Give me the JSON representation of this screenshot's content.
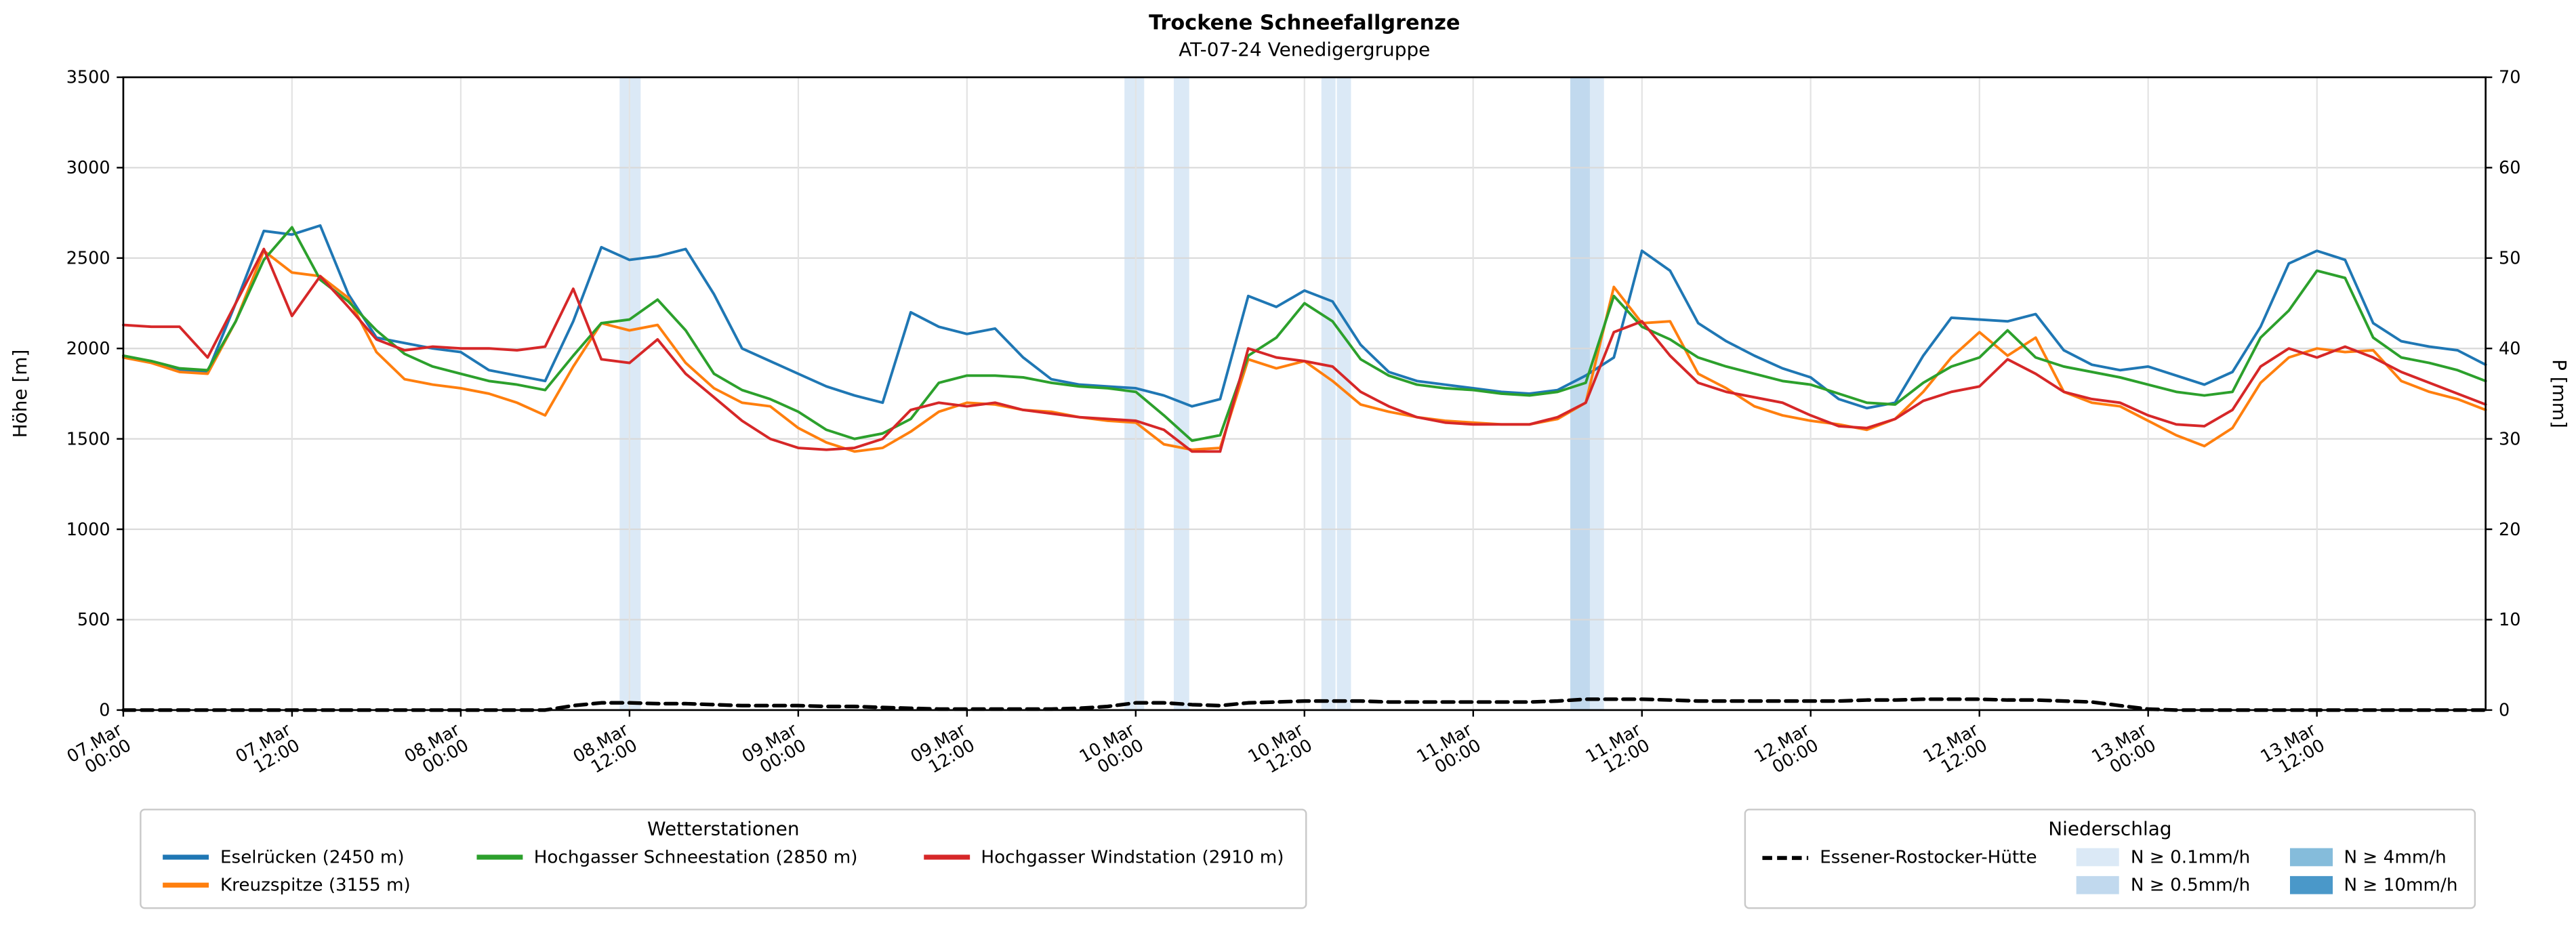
{
  "title": "Trockene Schneefallgrenze",
  "subtitle": "AT-07-24 Venedigergruppe",
  "legends": {
    "stations_title": "Wetterstationen",
    "precip_title": "Niederschlag"
  },
  "chart_data": {
    "type": "line",
    "title": "Trockene Schneefallgrenze",
    "subtitle": "AT-07-24 Venedigergruppe",
    "grid": true,
    "x_axis": {
      "start_hour": 0,
      "end_hour": 168,
      "tick_interval_hours": 12,
      "tick_labels": [
        [
          "07.Mar",
          "00:00"
        ],
        [
          "07.Mar",
          "12:00"
        ],
        [
          "08.Mar",
          "00:00"
        ],
        [
          "08.Mar",
          "12:00"
        ],
        [
          "09.Mar",
          "00:00"
        ],
        [
          "09.Mar",
          "12:00"
        ],
        [
          "10.Mar",
          "00:00"
        ],
        [
          "10.Mar",
          "12:00"
        ],
        [
          "11.Mar",
          "00:00"
        ],
        [
          "11.Mar",
          "12:00"
        ],
        [
          "12.Mar",
          "00:00"
        ],
        [
          "12.Mar",
          "12:00"
        ],
        [
          "13.Mar",
          "00:00"
        ],
        [
          "13.Mar",
          "12:00"
        ]
      ]
    },
    "y_left": {
      "label": "Höhe [m]",
      "min": 0,
      "max": 3500,
      "tick_step": 500
    },
    "y_right": {
      "label": "P [mm]",
      "min": 0,
      "max": 70,
      "tick_step": 10
    },
    "series": [
      {
        "name": "Eselrücken (2450 m)",
        "color": "#1f77b4",
        "axis": "left",
        "style": "solid",
        "start_hour": 0,
        "step_hours": 2,
        "values": [
          1950,
          1930,
          1880,
          1870,
          2250,
          2650,
          2630,
          2680,
          2300,
          2060,
          2030,
          2000,
          1980,
          1880,
          1850,
          1820,
          2150,
          2560,
          2490,
          2510,
          2550,
          2300,
          2000,
          1930,
          1860,
          1790,
          1740,
          1700,
          2200,
          2120,
          2080,
          2110,
          1950,
          1830,
          1800,
          1790,
          1780,
          1740,
          1680,
          1720,
          2290,
          2230,
          2320,
          2260,
          2020,
          1870,
          1820,
          1800,
          1780,
          1760,
          1750,
          1770,
          1850,
          1950,
          2540,
          2430,
          2140,
          2040,
          1960,
          1890,
          1840,
          1720,
          1670,
          1700,
          1960,
          2170,
          2160,
          2150,
          2190,
          1990,
          1910,
          1880,
          1900,
          1850,
          1800,
          1870,
          2120,
          2470,
          2540,
          2490,
          2140,
          2040,
          2010,
          1990,
          1910
        ]
      },
      {
        "name": "Kreuzspitze (3155 m)",
        "color": "#ff7f0e",
        "axis": "left",
        "style": "solid",
        "start_hour": 0,
        "step_hours": 2,
        "values": [
          1950,
          1920,
          1870,
          1860,
          2150,
          2540,
          2420,
          2400,
          2280,
          1980,
          1830,
          1800,
          1780,
          1750,
          1700,
          1630,
          1900,
          2140,
          2100,
          2130,
          1920,
          1780,
          1700,
          1680,
          1560,
          1480,
          1430,
          1450,
          1540,
          1650,
          1700,
          1690,
          1660,
          1650,
          1620,
          1600,
          1590,
          1470,
          1440,
          1450,
          1940,
          1890,
          1930,
          1820,
          1690,
          1650,
          1620,
          1600,
          1590,
          1580,
          1580,
          1610,
          1700,
          2340,
          2140,
          2150,
          1860,
          1780,
          1680,
          1630,
          1600,
          1580,
          1550,
          1610,
          1760,
          1950,
          2090,
          1960,
          2060,
          1760,
          1700,
          1680,
          1600,
          1520,
          1460,
          1560,
          1810,
          1950,
          2000,
          1980,
          1990,
          1820,
          1760,
          1720,
          1660
        ]
      },
      {
        "name": "Hochgasser Schneestation (2850 m)",
        "color": "#2ca02c",
        "axis": "left",
        "style": "solid",
        "start_hour": 0,
        "step_hours": 2,
        "values": [
          1960,
          1930,
          1890,
          1880,
          2150,
          2490,
          2670,
          2380,
          2260,
          2100,
          1970,
          1900,
          1860,
          1820,
          1800,
          1770,
          1960,
          2140,
          2160,
          2270,
          2100,
          1860,
          1770,
          1720,
          1650,
          1550,
          1500,
          1530,
          1610,
          1810,
          1850,
          1850,
          1840,
          1810,
          1790,
          1780,
          1760,
          1630,
          1490,
          1520,
          1960,
          2060,
          2250,
          2150,
          1940,
          1850,
          1800,
          1780,
          1770,
          1750,
          1740,
          1760,
          1810,
          2290,
          2120,
          2050,
          1950,
          1900,
          1860,
          1820,
          1800,
          1750,
          1700,
          1690,
          1810,
          1900,
          1950,
          2100,
          1950,
          1900,
          1870,
          1840,
          1800,
          1760,
          1740,
          1760,
          2060,
          2210,
          2430,
          2390,
          2060,
          1950,
          1920,
          1880,
          1820
        ]
      },
      {
        "name": "Hochgasser Windstation (2910 m)",
        "color": "#d62728",
        "axis": "left",
        "style": "solid",
        "start_hour": 0,
        "step_hours": 2,
        "values": [
          2130,
          2120,
          2120,
          1950,
          2250,
          2550,
          2180,
          2400,
          2230,
          2050,
          1990,
          2010,
          2000,
          2000,
          1990,
          2010,
          2330,
          1940,
          1920,
          2050,
          1860,
          1730,
          1600,
          1500,
          1450,
          1440,
          1450,
          1500,
          1660,
          1700,
          1680,
          1700,
          1660,
          1640,
          1620,
          1610,
          1600,
          1550,
          1430,
          1430,
          2000,
          1950,
          1930,
          1900,
          1760,
          1680,
          1620,
          1590,
          1580,
          1580,
          1580,
          1620,
          1700,
          2090,
          2150,
          1960,
          1810,
          1760,
          1730,
          1700,
          1630,
          1570,
          1560,
          1610,
          1710,
          1760,
          1790,
          1940,
          1860,
          1760,
          1720,
          1700,
          1630,
          1580,
          1570,
          1660,
          1900,
          2000,
          1950,
          2010,
          1950,
          1870,
          1810,
          1750,
          1690
        ]
      },
      {
        "name": "Essener-Rostocker-Hütte",
        "color": "#000000",
        "axis": "right",
        "style": "dashed",
        "start_hour": 0,
        "step_hours": 2,
        "values": [
          0,
          0,
          0,
          0,
          0,
          0,
          0,
          0,
          0,
          0,
          0,
          0,
          0,
          0,
          0,
          0,
          0.5,
          0.8,
          0.8,
          0.7,
          0.7,
          0.6,
          0.5,
          0.5,
          0.5,
          0.4,
          0.4,
          0.3,
          0.2,
          0.1,
          0.1,
          0.1,
          0.1,
          0.1,
          0.2,
          0.4,
          0.8,
          0.8,
          0.6,
          0.5,
          0.8,
          0.9,
          1.0,
          1.0,
          1.0,
          0.9,
          0.9,
          0.9,
          0.9,
          0.9,
          0.9,
          1.0,
          1.2,
          1.2,
          1.2,
          1.1,
          1.0,
          1.0,
          1.0,
          1.0,
          1.0,
          1.0,
          1.1,
          1.1,
          1.2,
          1.2,
          1.2,
          1.1,
          1.1,
          1.0,
          0.9,
          0.5,
          0.1,
          0,
          0,
          0,
          0,
          0,
          0,
          0,
          0,
          0,
          0,
          0,
          0
        ]
      }
    ],
    "precip_levels": [
      {
        "level": "0.1",
        "label": "N ≥ 0.1mm/h",
        "color": "#dbe9f6"
      },
      {
        "level": "0.5",
        "label": "N ≥ 0.5mm/h",
        "color": "#c1d9ee"
      },
      {
        "level": "4",
        "label": "N ≥ 4mm/h",
        "color": "#85bcdb"
      },
      {
        "level": "10",
        "label": "N ≥ 10mm/h",
        "color": "#4a98c9"
      }
    ],
    "precip_bands": [
      {
        "start_hour": 35.3,
        "end_hour": 36.8,
        "level": "0.1"
      },
      {
        "start_hour": 71.2,
        "end_hour": 72.6,
        "level": "0.1"
      },
      {
        "start_hour": 74.7,
        "end_hour": 75.8,
        "level": "0.1"
      },
      {
        "start_hour": 85.2,
        "end_hour": 86.2,
        "level": "0.1"
      },
      {
        "start_hour": 86.3,
        "end_hour": 87.3,
        "level": "0.1"
      },
      {
        "start_hour": 102.9,
        "end_hour": 104.3,
        "level": "0.5"
      },
      {
        "start_hour": 104.3,
        "end_hour": 105.3,
        "level": "0.1"
      }
    ]
  }
}
